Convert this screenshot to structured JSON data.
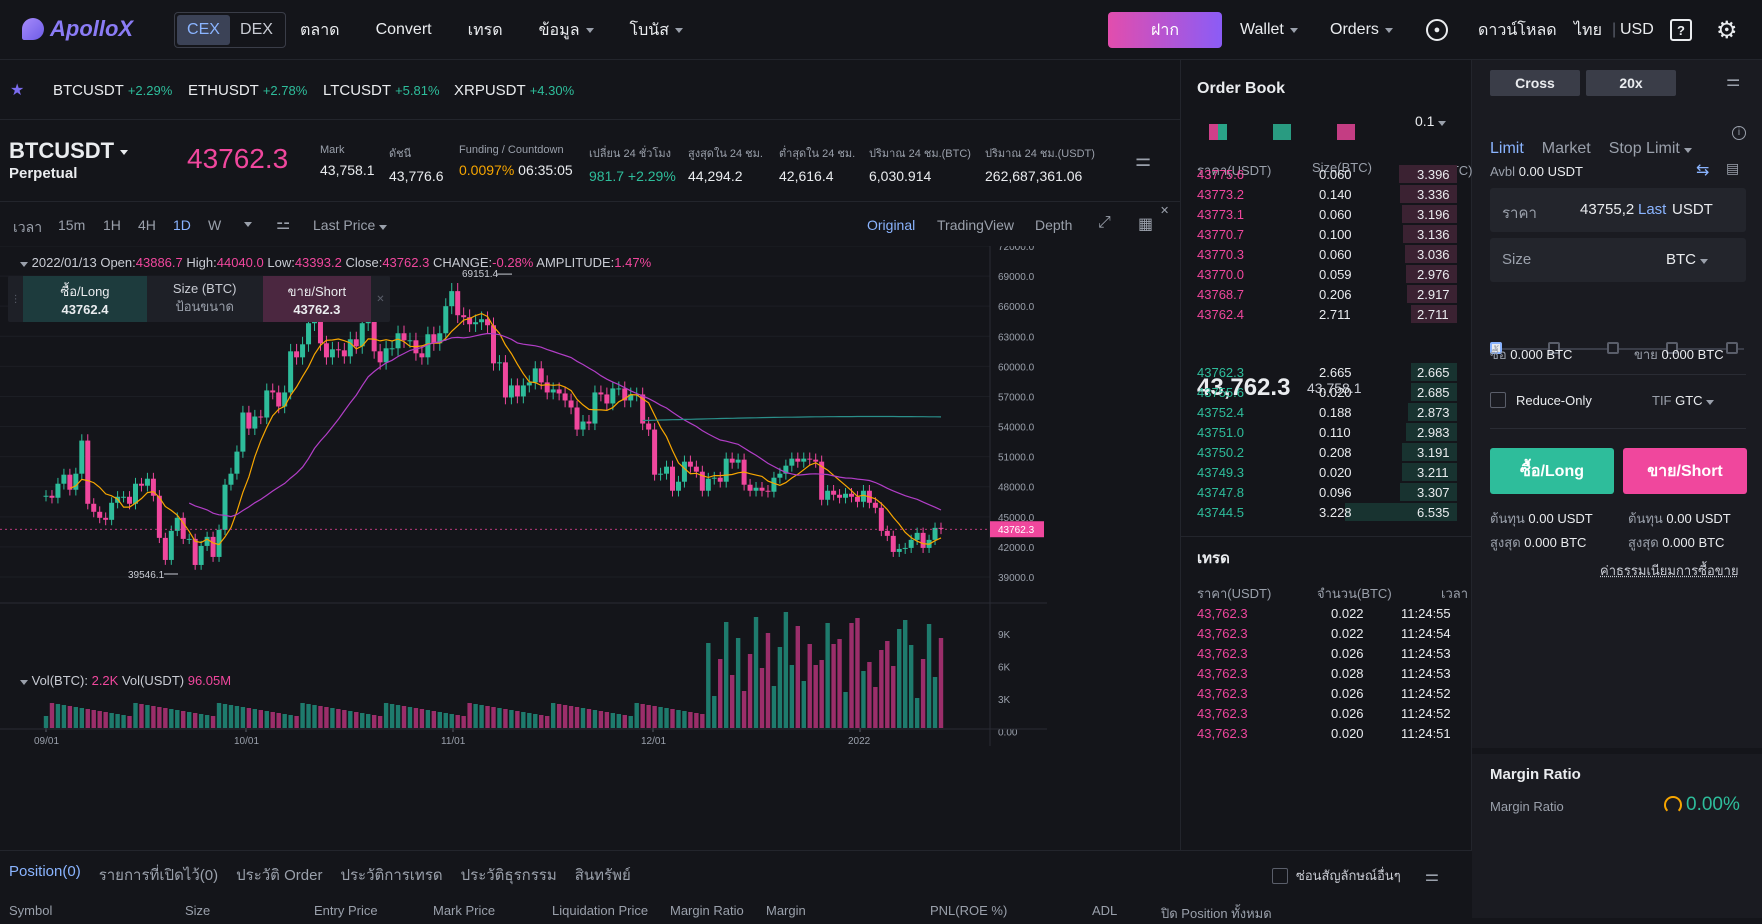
{
  "brand": {
    "name": "ApolloX"
  },
  "nav": {
    "cex": "CEX",
    "dex": "DEX",
    "links": [
      "ตลาด",
      "Convert",
      "เทรด",
      "ข้อมูล",
      "โบนัส"
    ],
    "deposit": "ฝาก",
    "wallet": "Wallet",
    "orders": "Orders",
    "download": "ดาวน์โหลด",
    "lang": "ไทย",
    "currency": "USD"
  },
  "tickers": [
    {
      "sym": "BTCUSDT",
      "chg": "+2.29%"
    },
    {
      "sym": "ETHUSDT",
      "chg": "+2.78%"
    },
    {
      "sym": "LTCUSDT",
      "chg": "+5.81%"
    },
    {
      "sym": "XRPUSDT",
      "chg": "+4.30%"
    }
  ],
  "info": {
    "symbol": "BTCUSDT",
    "type": "Perpetual",
    "price": "43762.3",
    "mark_l": "Mark",
    "mark": "43,758.1",
    "index_l": "ดัชนี",
    "index": "43,776.6",
    "funding_l": "Funding / Countdown",
    "funding": "0.0097%",
    "countdown": "06:35:05",
    "chg_l": "เปลี่ยน 24 ชั่วโมง",
    "chg": "981.7 +2.29%",
    "high_l": "สูงสุดใน 24 ชม.",
    "high": "44,294.2",
    "low_l": "ต่ำสุดใน 24 ชม.",
    "low": "42,616.4",
    "volb_l": "ปริมาณ 24 ชม.(BTC)",
    "volb": "6,030.914",
    "volu_l": "ปริมาณ 24 ชม.(USDT)",
    "volu": "262,687,361.06"
  },
  "chart_tools": {
    "time": "เวลา",
    "intervals": [
      "15m",
      "1H",
      "4H",
      "1D",
      "W"
    ],
    "active_interval": "1D",
    "price_type": "Last Price",
    "views": [
      "Original",
      "TradingView",
      "Depth"
    ],
    "active_view": "Original"
  },
  "ohlc": {
    "date": "2022/01/13",
    "open_l": "Open:",
    "open": "43886.7",
    "high_l": "High:",
    "high": "44040.0",
    "low_l": "Low:",
    "low": "43393.2",
    "close_l": "Close:",
    "close": "43762.3",
    "change_l": "CHANGE:",
    "change": "-0.28%",
    "amp_l": "AMPLITUDE:",
    "amp": "1.47%"
  },
  "quick_order": {
    "long_l": "ซื้อ/Long",
    "long": "43762.4",
    "size_l": "Size (BTC)",
    "size_ph": "ป้อนขนาด",
    "short_l": "ขาย/Short",
    "short": "43762.3"
  },
  "chart_data": {
    "type": "candlestick",
    "y_ticks": [
      "72000.0",
      "69000.0",
      "66000.0",
      "63000.0",
      "60000.0",
      "57000.0",
      "54000.0",
      "51000.0",
      "48000.0",
      "45000.0",
      "42000.0",
      "39000.0"
    ],
    "x_ticks": [
      "09/01",
      "10/01",
      "11/01",
      "12/01",
      "2022"
    ],
    "last_price": "43762.3",
    "max_label": "69151.4",
    "min_label": "39546.1",
    "closes": [
      47100,
      46900,
      48300,
      49200,
      47700,
      49300,
      52600,
      46300,
      45500,
      44900,
      44700,
      46400,
      47000,
      47000,
      46300,
      48300,
      48100,
      48800,
      47100,
      42900,
      40700,
      43600,
      44900,
      42800,
      42800,
      40200,
      42100,
      43000,
      41000,
      43700,
      48200,
      49300,
      51500,
      55400,
      53800,
      55000,
      54900,
      57600,
      57400,
      56000,
      57400,
      61500,
      60900,
      62200,
      64300,
      66100,
      62300,
      60900,
      61700,
      61600,
      61000,
      62700,
      62000,
      64300,
      65900,
      61500,
      60400,
      61800,
      61800,
      63300,
      62600,
      62600,
      61300,
      60900,
      63200,
      62300,
      63300,
      66000,
      67500,
      65100,
      64900,
      64200,
      64400,
      64700,
      64100,
      60300,
      60400,
      56900,
      58100,
      57000,
      58100,
      58400,
      59800,
      58400,
      57400,
      57700,
      57300,
      56600,
      55900,
      53700,
      54500,
      54300,
      57400,
      57200,
      56300,
      57800,
      57800,
      56600,
      57200,
      57200,
      54300,
      53700,
      49200,
      49300,
      50000,
      47600,
      48500,
      50500,
      50000,
      49500,
      47600,
      48800,
      48900,
      48500,
      50800,
      50400,
      50700,
      48200,
      47600,
      47900,
      47600,
      47500,
      48900,
      49300,
      50100,
      50800,
      50500,
      50800,
      50700,
      50500,
      46700,
      47600,
      47200,
      46900,
      47300,
      47000,
      46500,
      47600,
      46400,
      45900,
      43600,
      43100,
      41500,
      41800,
      41900,
      42700,
      43400,
      41900,
      42700,
      43900,
      43800
    ]
  },
  "volume": {
    "btc_l": "Vol(BTC):",
    "btc": "2.2K",
    "usdt_l": "Vol(USDT)",
    "usdt": "96.05M",
    "ticks": [
      "9K",
      "6K",
      "3K",
      "0.00"
    ]
  },
  "bottom": {
    "tabs": [
      "Position(0)",
      "รายการที่เปิดไว้(0)",
      "ประวัติ Order",
      "ประวัติการเทรด",
      "ประวัติธุรกรรม",
      "สินทรัพย์"
    ],
    "hide_other": "ซ่อนสัญลักษณ์อื่นๆ",
    "cols": [
      "Symbol",
      "Size",
      "Entry Price",
      "Mark Price",
      "Liquidation Price",
      "Margin Ratio",
      "Margin",
      "PNL(ROE %)",
      "ADL",
      "ปิด Position ทั้งหมด"
    ]
  },
  "orderbook": {
    "title": "Order Book",
    "precision": "0.1",
    "h_price": "ราคา(USDT)",
    "h_size": "Size(BTC)",
    "h_total": "รวม(BTC)",
    "asks": [
      [
        "43775.6",
        "0.060",
        "3.396"
      ],
      [
        "43773.2",
        "0.140",
        "3.336"
      ],
      [
        "43773.1",
        "0.060",
        "3.196"
      ],
      [
        "43770.7",
        "0.100",
        "3.136"
      ],
      [
        "43770.3",
        "0.060",
        "3.036"
      ],
      [
        "43770.0",
        "0.059",
        "2.976"
      ],
      [
        "43768.7",
        "0.206",
        "2.917"
      ],
      [
        "43762.4",
        "2.711",
        "2.711"
      ]
    ],
    "mid": "43,762.3",
    "mid_mark": "43,758.1",
    "bids": [
      [
        "43762.3",
        "2.665",
        "2.665"
      ],
      [
        "43755.6",
        "0.020",
        "2.685"
      ],
      [
        "43752.4",
        "0.188",
        "2.873"
      ],
      [
        "43751.0",
        "0.110",
        "2.983"
      ],
      [
        "43750.2",
        "0.208",
        "3.191"
      ],
      [
        "43749.3",
        "0.020",
        "3.211"
      ],
      [
        "43747.8",
        "0.096",
        "3.307"
      ],
      [
        "43744.5",
        "3.228",
        "6.535"
      ]
    ]
  },
  "trades": {
    "title": "เทรด",
    "h_price": "ราคา(USDT)",
    "h_amt": "จำนวน(BTC)",
    "h_time": "เวลา",
    "rows": [
      [
        "43,762.3",
        "0.022",
        "11:24:55"
      ],
      [
        "43,762.3",
        "0.022",
        "11:24:54"
      ],
      [
        "43,762.3",
        "0.026",
        "11:24:53"
      ],
      [
        "43,762.3",
        "0.028",
        "11:24:53"
      ],
      [
        "43,762.3",
        "0.026",
        "11:24:52"
      ],
      [
        "43,762.3",
        "0.026",
        "11:24:52"
      ],
      [
        "43,762.3",
        "0.020",
        "11:24:51"
      ]
    ]
  },
  "order": {
    "cross": "Cross",
    "lev": "20x",
    "tabs": [
      "Limit",
      "Market",
      "Stop Limit"
    ],
    "avbl_l": "Avbl",
    "avbl": "0.00 USDT",
    "price_l": "ราคา",
    "price": "43755,2",
    "last": "Last",
    "usdt": "USDT",
    "size_l": "Size",
    "btc": "BTC",
    "buy_l": "ซื้อ",
    "buy": "0.000 BTC",
    "sell_l": "ขาย",
    "sell": "0.000 BTC",
    "reduce": "Reduce-Only",
    "tif_l": "TIF",
    "tif": "GTC",
    "long": "ซื้อ/Long",
    "short": "ขาย/Short",
    "cost_l": "ต้นทุน",
    "cost_long": "0.00 USDT",
    "cost_short": "0.00 USDT",
    "max_l": "สูงสุด",
    "max_long": "0.000 BTC",
    "max_short": "0.000 BTC",
    "fee": "ค่าธรรมเนียมการซื้อขาย",
    "margin_title": "Margin Ratio",
    "margin_l": "Margin Ratio",
    "margin": "0.00%"
  },
  "colors": {
    "up": "#2ebd9b",
    "down": "#f0479d",
    "accent": "#8ab4ff"
  }
}
